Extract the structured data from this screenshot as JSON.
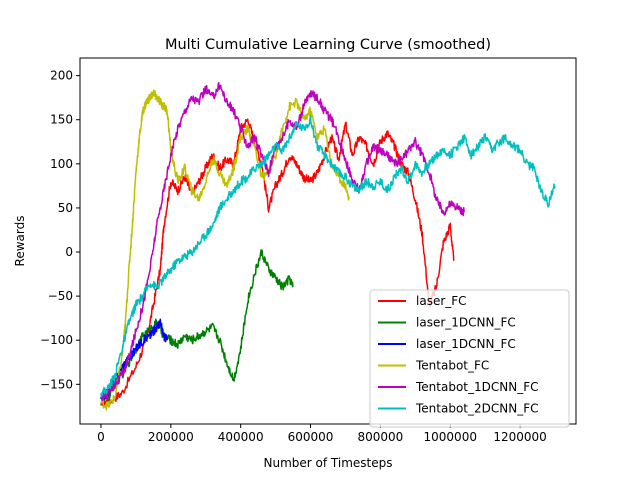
{
  "chart_data": {
    "type": "line",
    "title": "Multi Cumulative Learning Curve (smoothed)",
    "xlabel": "Number of Timesteps",
    "ylabel": "Rewards",
    "xlim": [
      -60000,
      1360000
    ],
    "ylim": [
      -195,
      220
    ],
    "xticks": [
      0,
      200000,
      400000,
      600000,
      800000,
      1000000,
      1200000
    ],
    "xtick_labels": [
      "0",
      "200000",
      "400000",
      "600000",
      "800000",
      "1000000",
      "1200000"
    ],
    "yticks": [
      -150,
      -100,
      -50,
      0,
      50,
      100,
      150,
      200
    ],
    "ytick_labels": [
      "−150",
      "−100",
      "−50",
      "0",
      "50",
      "100",
      "150",
      "200"
    ],
    "grid": false,
    "legend": "lower-right",
    "series": [
      {
        "name": "laser_FC",
        "color": "#ff0000",
        "x": [
          0,
          30000,
          60000,
          100000,
          130000,
          150000,
          170000,
          180000,
          200000,
          220000,
          240000,
          260000,
          280000,
          300000,
          320000,
          340000,
          360000,
          380000,
          400000,
          420000,
          440000,
          460000,
          480000,
          500000,
          520000,
          540000,
          560000,
          580000,
          600000,
          620000,
          640000,
          660000,
          680000,
          700000,
          720000,
          740000,
          760000,
          780000,
          800000,
          820000,
          840000,
          860000,
          880000,
          900000,
          920000,
          940000,
          960000,
          980000,
          1000000,
          1010000
        ],
        "y": [
          -170,
          -168,
          -160,
          -130,
          -100,
          -60,
          -20,
          30,
          80,
          70,
          85,
          65,
          80,
          95,
          110,
          95,
          105,
          100,
          140,
          150,
          125,
          100,
          50,
          75,
          90,
          110,
          100,
          85,
          80,
          90,
          110,
          130,
          105,
          145,
          110,
          130,
          120,
          100,
          125,
          135,
          120,
          100,
          90,
          60,
          20,
          -60,
          -40,
          10,
          30,
          -10
        ]
      },
      {
        "name": "laser_1DCNN_FC",
        "color": "#008000",
        "x": [
          0,
          20000,
          40000,
          60000,
          80000,
          100000,
          120000,
          140000,
          160000,
          180000,
          200000,
          220000,
          240000,
          260000,
          280000,
          300000,
          320000,
          340000,
          360000,
          380000,
          400000,
          420000,
          440000,
          460000,
          480000,
          500000,
          520000,
          540000,
          550000
        ],
        "y": [
          -170,
          -165,
          -150,
          -140,
          -125,
          -110,
          -95,
          -88,
          -80,
          -95,
          -100,
          -105,
          -95,
          -100,
          -95,
          -90,
          -85,
          -100,
          -125,
          -145,
          -110,
          -55,
          -25,
          0,
          -20,
          -30,
          -40,
          -30,
          -40
        ]
      },
      {
        "name": "laser_1DCNN_FC",
        "color": "#0000ff",
        "x": [
          0,
          20000,
          40000,
          60000,
          80000,
          100000,
          120000,
          140000,
          150000,
          160000,
          170000,
          180000,
          190000
        ],
        "y": [
          -165,
          -160,
          -145,
          -130,
          -120,
          -110,
          -100,
          -95,
          -90,
          -85,
          -80,
          -95,
          -100
        ]
      },
      {
        "name": "Tentabot_FC",
        "color": "#bfbf00",
        "x": [
          0,
          20000,
          40000,
          60000,
          70000,
          80000,
          90000,
          100000,
          110000,
          120000,
          130000,
          140000,
          150000,
          160000,
          170000,
          180000,
          190000,
          200000,
          220000,
          240000,
          260000,
          280000,
          300000,
          320000,
          340000,
          360000,
          380000,
          400000,
          420000,
          440000,
          460000,
          480000,
          500000,
          520000,
          540000,
          560000,
          580000,
          600000,
          620000,
          640000,
          660000,
          680000,
          700000,
          710000
        ],
        "y": [
          -170,
          -175,
          -165,
          -120,
          -80,
          -20,
          30,
          90,
          130,
          160,
          170,
          175,
          180,
          175,
          170,
          165,
          160,
          115,
          80,
          95,
          70,
          60,
          80,
          105,
          90,
          75,
          95,
          130,
          140,
          120,
          85,
          90,
          110,
          140,
          165,
          170,
          150,
          160,
          130,
          140,
          100,
          85,
          75,
          60
        ]
      },
      {
        "name": "Tentabot_1DCNN_FC",
        "color": "#bf00bf",
        "x": [
          0,
          20000,
          40000,
          60000,
          80000,
          100000,
          120000,
          140000,
          160000,
          180000,
          200000,
          220000,
          240000,
          260000,
          280000,
          300000,
          320000,
          340000,
          360000,
          380000,
          400000,
          420000,
          440000,
          460000,
          480000,
          500000,
          520000,
          540000,
          560000,
          580000,
          600000,
          620000,
          640000,
          660000,
          680000,
          700000,
          720000,
          740000,
          760000,
          780000,
          800000,
          820000,
          840000,
          860000,
          880000,
          900000,
          920000,
          940000,
          960000,
          980000,
          1000000,
          1020000,
          1040000
        ],
        "y": [
          -165,
          -160,
          -150,
          -140,
          -120,
          -90,
          -60,
          -20,
          30,
          70,
          110,
          140,
          160,
          175,
          170,
          185,
          175,
          190,
          170,
          160,
          140,
          120,
          130,
          110,
          90,
          120,
          130,
          150,
          140,
          165,
          180,
          175,
          160,
          150,
          130,
          105,
          80,
          70,
          100,
          120,
          115,
          110,
          100,
          105,
          115,
          125,
          110,
          90,
          60,
          45,
          55,
          50,
          45
        ]
      },
      {
        "name": "Tentabot_2DCNN_FC",
        "color": "#00bfbf",
        "x": [
          0,
          20000,
          40000,
          60000,
          80000,
          100000,
          120000,
          140000,
          160000,
          180000,
          200000,
          220000,
          240000,
          260000,
          280000,
          300000,
          320000,
          340000,
          360000,
          380000,
          400000,
          420000,
          440000,
          460000,
          480000,
          500000,
          520000,
          540000,
          560000,
          580000,
          600000,
          620000,
          640000,
          660000,
          680000,
          700000,
          720000,
          740000,
          760000,
          780000,
          800000,
          820000,
          840000,
          860000,
          880000,
          900000,
          920000,
          940000,
          960000,
          980000,
          1000000,
          1020000,
          1040000,
          1060000,
          1080000,
          1100000,
          1120000,
          1140000,
          1160000,
          1180000,
          1200000,
          1220000,
          1240000,
          1260000,
          1280000,
          1300000
        ],
        "y": [
          -160,
          -155,
          -140,
          -110,
          -80,
          -60,
          -50,
          -35,
          -40,
          -30,
          -20,
          -10,
          -5,
          0,
          10,
          20,
          30,
          50,
          60,
          70,
          80,
          85,
          95,
          100,
          110,
          120,
          115,
          130,
          145,
          140,
          150,
          120,
          110,
          100,
          90,
          85,
          75,
          70,
          80,
          75,
          80,
          70,
          85,
          95,
          80,
          100,
          90,
          100,
          110,
          115,
          110,
          120,
          130,
          110,
          120,
          130,
          115,
          125,
          130,
          120,
          115,
          100,
          95,
          70,
          55,
          75
        ]
      }
    ]
  }
}
